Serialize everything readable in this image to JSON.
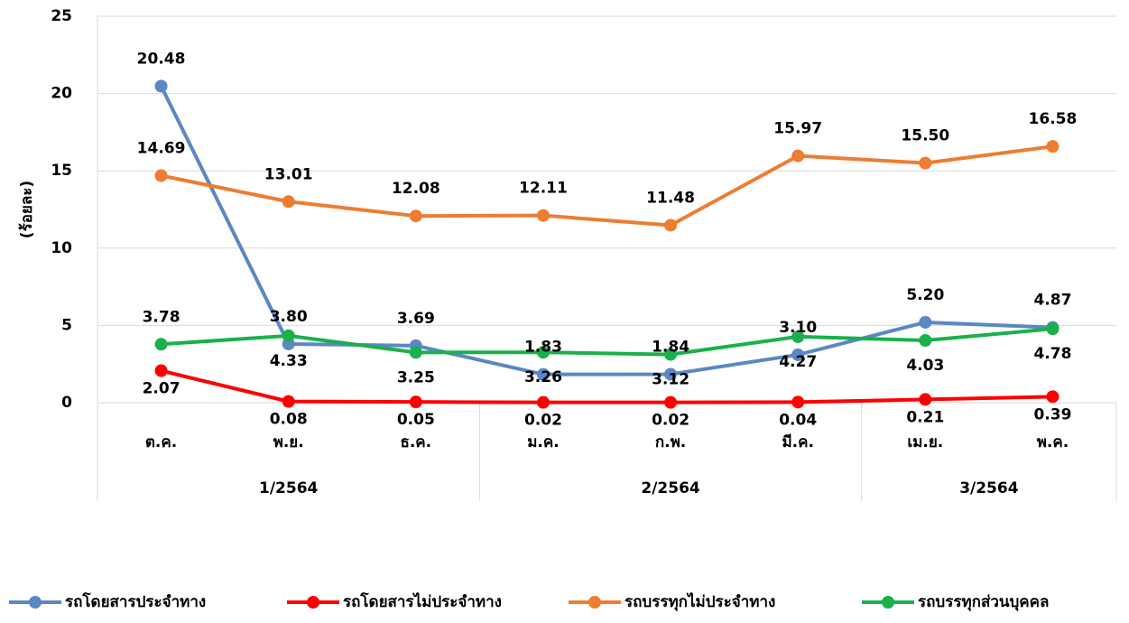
{
  "chart_data": {
    "type": "line",
    "y_axis_label": "(ร้อยละ)",
    "categories": [
      "ต.ค.",
      "พ.ย.",
      "ธ.ค.",
      "ม.ค.",
      "ก.พ.",
      "มี.ค.",
      "เม.ย.",
      "พ.ค."
    ],
    "groups": [
      {
        "label": "1/2564",
        "count": 3
      },
      {
        "label": "2/2564",
        "count": 3
      },
      {
        "label": "3/2564",
        "count": 2
      }
    ],
    "series": [
      {
        "name": "รถโดยสารประจำทาง",
        "color": "#5b87c5",
        "values": [
          20.48,
          3.8,
          3.69,
          1.83,
          1.84,
          3.1,
          5.2,
          4.87
        ],
        "value_labels": [
          "20.48",
          "3.80",
          "3.69",
          "1.83",
          "1.84",
          "3.10",
          "5.20",
          "4.87"
        ]
      },
      {
        "name": "รถโดยสารไม่ประจำทาง",
        "color": "#ff0000",
        "values": [
          2.07,
          0.08,
          0.05,
          0.02,
          0.02,
          0.04,
          0.21,
          0.39
        ],
        "value_labels": [
          "2.07",
          "0.08",
          "0.05",
          "0.02",
          "0.02",
          "0.04",
          "0.21",
          "0.39"
        ]
      },
      {
        "name": "รถบรรทุกไม่ประจำทาง",
        "color": "#ed7d31",
        "values": [
          14.69,
          13.01,
          12.08,
          12.11,
          11.48,
          15.97,
          15.5,
          16.58
        ],
        "value_labels": [
          "14.69",
          "13.01",
          "12.08",
          "12.11",
          "11.48",
          "15.97",
          "15.50",
          "16.58"
        ]
      },
      {
        "name": "รถบรรทุกส่วนบุคคล",
        "color": "#1ab04c",
        "values": [
          3.78,
          4.33,
          3.25,
          3.26,
          3.12,
          4.27,
          4.03,
          4.78
        ],
        "value_labels": [
          "3.78",
          "4.33",
          "3.25",
          "3.26",
          "3.12",
          "4.27",
          "4.03",
          "4.78"
        ]
      }
    ],
    "ylim": [
      0,
      25
    ],
    "yticks": [
      0,
      5,
      10,
      15,
      20,
      25
    ],
    "grid": true,
    "legend": "bottom"
  }
}
